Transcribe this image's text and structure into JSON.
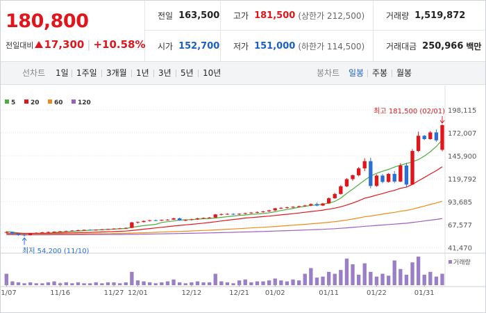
{
  "summary": {
    "current_price": "180,800",
    "change_label": "전일대비",
    "change_value": "17,300",
    "change_rate": "+10.58%",
    "prev_close_label": "전일",
    "prev_close": "163,500",
    "high_label": "고가",
    "high": "181,500",
    "upper_limit": "(상한가 212,500)",
    "volume_label": "거래량",
    "volume": "1,519,872",
    "open_label": "시가",
    "open": "152,700",
    "low_label": "저가",
    "low": "151,000",
    "lower_limit": "(하한가 114,500)",
    "amount_label": "거래대금",
    "amount": "250,966",
    "amount_unit": "백만"
  },
  "toolbar": {
    "line_label": "선차트",
    "line_periods": [
      "1일",
      "1주일",
      "3개월",
      "1년",
      "3년",
      "5년",
      "10년"
    ],
    "candle_label": "봉차트",
    "candle_periods": [
      "일봉",
      "주봉",
      "월봉"
    ],
    "active_candle": "일봉"
  },
  "colors": {
    "up": "#e0161c",
    "down": "#2b6fd6",
    "ma5": "#4cae3c",
    "ma20": "#e0161c",
    "ma60": "#ef8a17",
    "ma120": "#9b5fc0",
    "volume": "#9a7fc6",
    "grid": "#e6e6e6"
  },
  "chart_data": {
    "type": "candlestick",
    "title": "일봉",
    "legend": [
      "5",
      "20",
      "60",
      "120"
    ],
    "y_ticks": [
      "198,115",
      "172,007",
      "145,900",
      "119,792",
      "93,685",
      "67,577",
      "41,470"
    ],
    "ylim": [
      41470,
      198115
    ],
    "x_tick_labels": [
      "11/07",
      "11/16",
      "11/27",
      "12/01",
      "12/12",
      "12/21",
      "01/02",
      "01/11",
      "01/22",
      "01/31"
    ],
    "x_tick_index": [
      0,
      9,
      18,
      22,
      31,
      39,
      45,
      54,
      62,
      70
    ],
    "high_annotation": "최고 181,500 (02/01)",
    "low_annotation": "최저 54,200 (11/10)",
    "volume_label": "거래량",
    "candles": [
      [
        58800,
        60200,
        57800,
        59200
      ],
      [
        59200,
        59800,
        56600,
        57300
      ],
      [
        57300,
        57700,
        55000,
        56100
      ],
      [
        56100,
        57000,
        54200,
        55600
      ],
      [
        55600,
        58300,
        55200,
        57900
      ],
      [
        57900,
        58800,
        57200,
        58300
      ],
      [
        58300,
        59400,
        57900,
        58800
      ],
      [
        58800,
        59700,
        58200,
        59200
      ],
      [
        59200,
        60000,
        58600,
        59600
      ],
      [
        59600,
        60400,
        59000,
        60000
      ],
      [
        60000,
        60800,
        59400,
        60300
      ],
      [
        60300,
        61200,
        59900,
        60800
      ],
      [
        60800,
        61700,
        60300,
        61300
      ],
      [
        61300,
        62100,
        60700,
        61700
      ],
      [
        61700,
        62300,
        61000,
        61500
      ],
      [
        61500,
        62200,
        60800,
        61900
      ],
      [
        61900,
        62600,
        61300,
        62200
      ],
      [
        62200,
        63000,
        61700,
        62600
      ],
      [
        62600,
        63500,
        62100,
        63000
      ],
      [
        63000,
        63900,
        62500,
        63400
      ],
      [
        63400,
        64400,
        62900,
        63900
      ],
      [
        63900,
        70600,
        63600,
        70200
      ],
      [
        70200,
        71100,
        68900,
        70600
      ],
      [
        70600,
        72300,
        70000,
        71800
      ],
      [
        71800,
        73000,
        71100,
        72600
      ],
      [
        72600,
        73400,
        71800,
        72300
      ],
      [
        72300,
        73500,
        71700,
        73000
      ],
      [
        73000,
        73800,
        72200,
        73300
      ],
      [
        73300,
        75500,
        72900,
        74800
      ],
      [
        74800,
        75600,
        71900,
        72500
      ],
      [
        72500,
        73400,
        71600,
        72900
      ],
      [
        72900,
        74200,
        72300,
        73700
      ],
      [
        73700,
        75400,
        73200,
        74800
      ],
      [
        74800,
        75800,
        74000,
        75200
      ],
      [
        75200,
        76300,
        74600,
        75700
      ],
      [
        75700,
        79700,
        75300,
        79200
      ],
      [
        79200,
        80300,
        78000,
        79600
      ],
      [
        79600,
        80600,
        78800,
        79800
      ],
      [
        79800,
        80700,
        78500,
        79200
      ],
      [
        79200,
        80500,
        78500,
        80000
      ],
      [
        80000,
        81200,
        79300,
        80600
      ],
      [
        80600,
        82000,
        80000,
        81300
      ],
      [
        81300,
        82600,
        80600,
        81900
      ],
      [
        81900,
        83300,
        81200,
        82700
      ],
      [
        82700,
        84500,
        82000,
        83800
      ],
      [
        83800,
        86700,
        83200,
        86200
      ],
      [
        86200,
        87400,
        85300,
        86700
      ],
      [
        86700,
        88000,
        85900,
        87300
      ],
      [
        87300,
        88600,
        86500,
        87900
      ],
      [
        87900,
        89200,
        87100,
        88600
      ],
      [
        88600,
        90100,
        87800,
        89400
      ],
      [
        89400,
        91800,
        88600,
        91000
      ],
      [
        91000,
        92700,
        88500,
        89300
      ],
      [
        89300,
        92400,
        88800,
        91700
      ],
      [
        91700,
        98500,
        91200,
        97600
      ],
      [
        97600,
        103800,
        97000,
        102500
      ],
      [
        102500,
        112500,
        101800,
        111200
      ],
      [
        111200,
        120500,
        110300,
        119400
      ],
      [
        119400,
        124600,
        117300,
        123800
      ],
      [
        123800,
        133200,
        122600,
        131600
      ],
      [
        131600,
        143200,
        128500,
        139800
      ],
      [
        139800,
        143700,
        108900,
        111600
      ],
      [
        111600,
        124800,
        110700,
        123400
      ],
      [
        123400,
        125100,
        114700,
        116200
      ],
      [
        116200,
        126300,
        115400,
        125300
      ],
      [
        125300,
        128400,
        114800,
        116600
      ],
      [
        116600,
        137500,
        116000,
        134800
      ],
      [
        134800,
        137900,
        110100,
        113200
      ],
      [
        113200,
        153600,
        112800,
        151400
      ],
      [
        151400,
        173400,
        150200,
        168700
      ],
      [
        168700,
        169500,
        163800,
        164900
      ],
      [
        164900,
        174200,
        164200,
        172500
      ],
      [
        172500,
        175800,
        161800,
        163500
      ],
      [
        152700,
        181500,
        151000,
        180800
      ]
    ],
    "volume": [
      12,
      4,
      3,
      2,
      3,
      2,
      2,
      3,
      4,
      2,
      3,
      2,
      3,
      2,
      2,
      3,
      2,
      3,
      3,
      2,
      3,
      14,
      5,
      4,
      3,
      2,
      3,
      4,
      6,
      3,
      2,
      3,
      4,
      3,
      3,
      12,
      4,
      3,
      2,
      5,
      6,
      3,
      4,
      4,
      5,
      7,
      5,
      4,
      6,
      5,
      12,
      18,
      8,
      9,
      14,
      12,
      16,
      28,
      22,
      11,
      23,
      14,
      9,
      12,
      10,
      26,
      17,
      11,
      24,
      30,
      11,
      14,
      9,
      12
    ],
    "ma5": [
      59600,
      59100,
      58200,
      57500,
      57200,
      57100,
      57100,
      57700,
      58600,
      59100,
      59600,
      60000,
      60400,
      60800,
      61300,
      61600,
      61900,
      62100,
      62500,
      62900,
      63200,
      64500,
      65600,
      66500,
      67200,
      68000,
      70100,
      71000,
      71800,
      72800,
      73100,
      73300,
      73800,
      74300,
      74600,
      75100,
      75900,
      76700,
      77400,
      78100,
      78600,
      79300,
      79800,
      80300,
      81000,
      82400,
      83600,
      84800,
      86100,
      87400,
      88400,
      89500,
      90000,
      90800,
      92300,
      94000,
      97700,
      103200,
      108000,
      113100,
      118200,
      122900,
      126000,
      128300,
      130500,
      133100,
      135200,
      137000,
      139100,
      141600,
      145600,
      150600,
      156500,
      164000
    ]
  }
}
